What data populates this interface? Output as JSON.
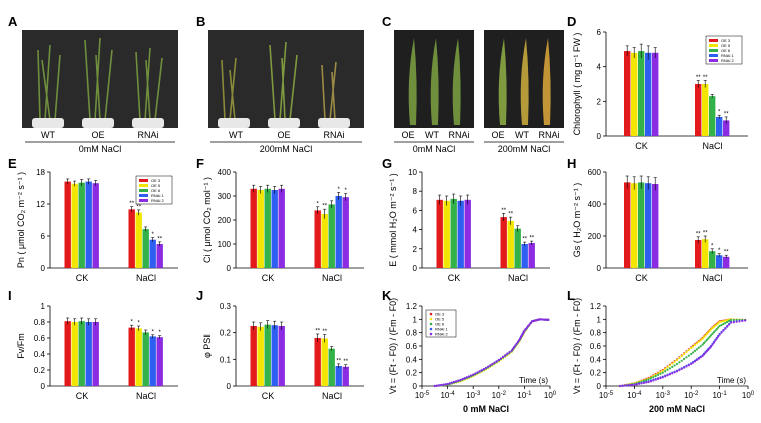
{
  "panel_labels": [
    "A",
    "B",
    "C",
    "D",
    "E",
    "F",
    "G",
    "H",
    "I",
    "J",
    "K",
    "L"
  ],
  "colors": {
    "genotypes": [
      "#e31a1c",
      "#f2e600",
      "#33b24a",
      "#2f5ff0",
      "#8b2be2"
    ],
    "photo_bg": "#2a2a2a",
    "leaf_green": "#6f8f3d",
    "leaf_yellow": "#b59a3a"
  },
  "photos": {
    "A": {
      "genotypes": [
        "WT",
        "OE",
        "RNAi"
      ],
      "treatment": "0mM NaCl"
    },
    "B": {
      "genotypes": [
        "WT",
        "OE",
        "RNAi"
      ],
      "treatment": "200mM NaCl"
    },
    "C": [
      {
        "genotypes": [
          "OE",
          "WT",
          "RNAi"
        ],
        "treatment": "0mM NaCl"
      },
      {
        "genotypes": [
          "OE",
          "WT",
          "RNAi"
        ],
        "treatment": "200mM NaCl"
      }
    ]
  },
  "chart_data": [
    {
      "panel": "D",
      "type": "bar",
      "ylabel": "Chlorophyll ( mg g⁻¹ FW )",
      "categories": [
        "CK",
        "NaCl"
      ],
      "ylim": [
        0,
        6
      ],
      "yticks": [
        0,
        2,
        4,
        6
      ],
      "legend": [
        "OE 3",
        "OE 5",
        "OE 6",
        "RNAi 1",
        "RNAi 2"
      ],
      "series_values": [
        [
          4.9,
          3.0
        ],
        [
          4.8,
          3.0
        ],
        [
          4.9,
          2.3
        ],
        [
          4.8,
          1.1
        ],
        [
          4.8,
          0.9
        ]
      ],
      "errors": [
        [
          0.3,
          0.2
        ],
        [
          0.3,
          0.2
        ],
        [
          0.4,
          0.1
        ],
        [
          0.4,
          0.1
        ],
        [
          0.3,
          0.2
        ]
      ],
      "stars": [
        [
          "",
          "**"
        ],
        [
          "",
          "**"
        ],
        [
          "",
          ""
        ],
        [
          "",
          "*"
        ],
        [
          "",
          "**"
        ]
      ]
    },
    {
      "panel": "E",
      "type": "bar",
      "ylabel": "Pn ( μmol CO₂ m⁻² s⁻¹ )",
      "categories": [
        "CK",
        "NaCl"
      ],
      "ylim": [
        0,
        18
      ],
      "yticks": [
        0,
        6,
        12,
        18
      ],
      "legend": [
        "OE 3",
        "OE 5",
        "OE 6",
        "RNAi 1",
        "RNAi 2"
      ],
      "series_values": [
        [
          16.2,
          11.0
        ],
        [
          15.8,
          10.4
        ],
        [
          16.0,
          7.3
        ],
        [
          16.2,
          5.3
        ],
        [
          15.9,
          4.5
        ]
      ],
      "errors": [
        [
          0.5,
          0.5
        ],
        [
          0.5,
          0.5
        ],
        [
          0.6,
          0.4
        ],
        [
          0.5,
          0.4
        ],
        [
          0.5,
          0.4
        ]
      ],
      "stars": [
        [
          "",
          "**"
        ],
        [
          "",
          "**"
        ],
        [
          "",
          ""
        ],
        [
          "",
          "*"
        ],
        [
          "",
          "**"
        ]
      ]
    },
    {
      "panel": "F",
      "type": "bar",
      "ylabel": "Ci ( μmol CO₂ mol⁻¹ )",
      "categories": [
        "CK",
        "NaCl"
      ],
      "ylim": [
        0,
        400
      ],
      "yticks": [
        0,
        100,
        200,
        300,
        400
      ],
      "legend": [],
      "series_values": [
        [
          330,
          240
        ],
        [
          325,
          225
        ],
        [
          330,
          265
        ],
        [
          325,
          300
        ],
        [
          330,
          295
        ]
      ],
      "errors": [
        [
          15,
          15
        ],
        [
          15,
          20
        ],
        [
          15,
          15
        ],
        [
          15,
          15
        ],
        [
          15,
          15
        ]
      ],
      "stars": [
        [
          "",
          "*"
        ],
        [
          "",
          "**"
        ],
        [
          "",
          ""
        ],
        [
          "",
          "*"
        ],
        [
          "",
          "*"
        ]
      ]
    },
    {
      "panel": "G",
      "type": "bar",
      "ylabel": "E ( mmol H₂O m⁻² s⁻¹ )",
      "categories": [
        "CK",
        "NaCl"
      ],
      "ylim": [
        0,
        10
      ],
      "yticks": [
        0,
        2,
        4,
        6,
        8,
        10
      ],
      "legend": [],
      "series_values": [
        [
          7.1,
          5.3
        ],
        [
          7.0,
          4.9
        ],
        [
          7.2,
          4.1
        ],
        [
          7.0,
          2.5
        ],
        [
          7.1,
          2.6
        ]
      ],
      "errors": [
        [
          0.5,
          0.4
        ],
        [
          0.5,
          0.4
        ],
        [
          0.5,
          0.3
        ],
        [
          0.5,
          0.2
        ],
        [
          0.5,
          0.2
        ]
      ],
      "stars": [
        [
          "",
          "**"
        ],
        [
          "",
          "**"
        ],
        [
          "",
          ""
        ],
        [
          "",
          "**"
        ],
        [
          "",
          "**"
        ]
      ]
    },
    {
      "panel": "H",
      "type": "bar",
      "ylabel": "Gs ( H₂O m⁻² s⁻¹ )",
      "categories": [
        "CK",
        "NaCl"
      ],
      "ylim": [
        0,
        600
      ],
      "yticks": [
        0,
        200,
        400,
        600
      ],
      "legend": [],
      "series_values": [
        [
          535,
          175
        ],
        [
          530,
          180
        ],
        [
          535,
          105
        ],
        [
          530,
          80
        ],
        [
          525,
          70
        ]
      ],
      "errors": [
        [
          40,
          20
        ],
        [
          40,
          20
        ],
        [
          40,
          15
        ],
        [
          40,
          10
        ],
        [
          40,
          10
        ]
      ],
      "stars": [
        [
          "",
          "**"
        ],
        [
          "",
          "**"
        ],
        [
          "",
          "*"
        ],
        [
          "",
          "*"
        ],
        [
          "",
          "**"
        ]
      ]
    },
    {
      "panel": "I",
      "type": "bar",
      "ylabel": "Fv/Fm",
      "categories": [
        "CK",
        "NaCl"
      ],
      "ylim": [
        0,
        1.0
      ],
      "yticks": [
        0,
        0.2,
        0.4,
        0.6,
        0.8,
        1.0
      ],
      "legend": [],
      "series_values": [
        [
          0.81,
          0.73
        ],
        [
          0.8,
          0.72
        ],
        [
          0.81,
          0.67
        ],
        [
          0.8,
          0.62
        ],
        [
          0.8,
          0.61
        ]
      ],
      "errors": [
        [
          0.04,
          0.03
        ],
        [
          0.04,
          0.03
        ],
        [
          0.04,
          0.03
        ],
        [
          0.04,
          0.02
        ],
        [
          0.04,
          0.02
        ]
      ],
      "stars": [
        [
          "",
          "*"
        ],
        [
          "",
          "*"
        ],
        [
          "",
          ""
        ],
        [
          "",
          "*"
        ],
        [
          "",
          "*"
        ]
      ]
    },
    {
      "panel": "J",
      "type": "bar",
      "ylabel": "φ PS‖",
      "categories": [
        "CK",
        "NaCl"
      ],
      "ylim": [
        0,
        0.3
      ],
      "yticks": [
        0,
        0.1,
        0.2,
        0.3
      ],
      "legend": [],
      "series_values": [
        [
          0.225,
          0.18
        ],
        [
          0.222,
          0.178
        ],
        [
          0.23,
          0.14
        ],
        [
          0.228,
          0.075
        ],
        [
          0.225,
          0.072
        ]
      ],
      "errors": [
        [
          0.015,
          0.015
        ],
        [
          0.015,
          0.015
        ],
        [
          0.015,
          0.008
        ],
        [
          0.015,
          0.008
        ],
        [
          0.015,
          0.008
        ]
      ],
      "stars": [
        [
          "",
          "**"
        ],
        [
          "",
          "**"
        ],
        [
          "",
          ""
        ],
        [
          "",
          "**"
        ],
        [
          "",
          "**"
        ]
      ]
    },
    {
      "panel": "K",
      "type": "scatter",
      "ylabel": "Vt = (Ft - F0) / (Fm - F0)",
      "xlabel": "Time (s)",
      "caption": "0 mM NaCl",
      "xscale": "log",
      "xlim": [
        1e-05,
        1
      ],
      "ylim": [
        0,
        1.2
      ],
      "xtick_exponents": [
        -5,
        -4,
        -3,
        -2,
        -1,
        0
      ],
      "yticks": [
        0,
        0.2,
        0.4,
        0.6,
        0.8,
        1.0,
        1.2
      ],
      "legend": [
        "OE 3",
        "OE 5",
        "OE 6",
        "RNAi 1",
        "RNAi 2"
      ],
      "curves": [
        {
          "points": [
            [
              -4.5,
              0.0
            ],
            [
              -4,
              0.02
            ],
            [
              -3.5,
              0.08
            ],
            [
              -3,
              0.16
            ],
            [
              -2.5,
              0.26
            ],
            [
              -2,
              0.38
            ],
            [
              -1.5,
              0.52
            ],
            [
              -1.2,
              0.68
            ],
            [
              -1,
              0.82
            ],
            [
              -0.7,
              0.97
            ],
            [
              -0.4,
              1.0
            ],
            [
              0,
              0.99
            ]
          ]
        },
        {
          "points": [
            [
              -4.5,
              0.0
            ],
            [
              -4,
              0.02
            ],
            [
              -3.5,
              0.07
            ],
            [
              -3,
              0.15
            ],
            [
              -2.5,
              0.25
            ],
            [
              -2,
              0.37
            ],
            [
              -1.5,
              0.51
            ],
            [
              -1.2,
              0.67
            ],
            [
              -1,
              0.81
            ],
            [
              -0.7,
              0.97
            ],
            [
              -0.4,
              1.0
            ],
            [
              0,
              0.99
            ]
          ]
        },
        {
          "points": [
            [
              -4.5,
              0.0
            ],
            [
              -4,
              0.02
            ],
            [
              -3.5,
              0.08
            ],
            [
              -3,
              0.16
            ],
            [
              -2.5,
              0.26
            ],
            [
              -2,
              0.38
            ],
            [
              -1.5,
              0.52
            ],
            [
              -1.2,
              0.68
            ],
            [
              -1,
              0.82
            ],
            [
              -0.7,
              0.97
            ],
            [
              -0.4,
              1.0
            ],
            [
              0,
              0.99
            ]
          ]
        },
        {
          "points": [
            [
              -4.5,
              0.0
            ],
            [
              -4,
              0.03
            ],
            [
              -3.5,
              0.09
            ],
            [
              -3,
              0.17
            ],
            [
              -2.5,
              0.27
            ],
            [
              -2,
              0.39
            ],
            [
              -1.5,
              0.53
            ],
            [
              -1.2,
              0.69
            ],
            [
              -1,
              0.83
            ],
            [
              -0.7,
              0.97
            ],
            [
              -0.4,
              1.0
            ],
            [
              0,
              0.99
            ]
          ]
        },
        {
          "points": [
            [
              -4.5,
              0.0
            ],
            [
              -4,
              0.03
            ],
            [
              -3.5,
              0.09
            ],
            [
              -3,
              0.17
            ],
            [
              -2.5,
              0.27
            ],
            [
              -2,
              0.39
            ],
            [
              -1.5,
              0.53
            ],
            [
              -1.2,
              0.69
            ],
            [
              -1,
              0.83
            ],
            [
              -0.7,
              0.97
            ],
            [
              -0.4,
              1.0
            ],
            [
              0,
              0.99
            ]
          ]
        }
      ]
    },
    {
      "panel": "L",
      "type": "scatter",
      "ylabel": "Vt = (Ft - F0) / (Fm - F0)",
      "xlabel": "Time (s)",
      "caption": "200 mM NaCl",
      "xscale": "log",
      "xlim": [
        1e-05,
        1
      ],
      "ylim": [
        0,
        1.2
      ],
      "xtick_exponents": [
        -5,
        -4,
        -3,
        -2,
        -1,
        0
      ],
      "yticks": [
        0,
        0.2,
        0.4,
        0.6,
        0.8,
        1.0,
        1.2
      ],
      "legend": [],
      "curves": [
        {
          "points": [
            [
              -4.5,
              0.0
            ],
            [
              -4,
              0.04
            ],
            [
              -3.5,
              0.12
            ],
            [
              -3,
              0.24
            ],
            [
              -2.5,
              0.4
            ],
            [
              -2,
              0.58
            ],
            [
              -1.6,
              0.72
            ],
            [
              -1.3,
              0.86
            ],
            [
              -1,
              0.97
            ],
            [
              -0.6,
              1.0
            ],
            [
              0,
              0.99
            ]
          ]
        },
        {
          "points": [
            [
              -4.5,
              0.0
            ],
            [
              -4,
              0.04
            ],
            [
              -3.5,
              0.11
            ],
            [
              -3,
              0.23
            ],
            [
              -2.5,
              0.39
            ],
            [
              -2,
              0.57
            ],
            [
              -1.6,
              0.71
            ],
            [
              -1.3,
              0.85
            ],
            [
              -1,
              0.96
            ],
            [
              -0.6,
              1.0
            ],
            [
              0,
              0.99
            ]
          ]
        },
        {
          "points": [
            [
              -4.5,
              0.0
            ],
            [
              -4,
              0.03
            ],
            [
              -3.5,
              0.1
            ],
            [
              -3,
              0.2
            ],
            [
              -2.5,
              0.33
            ],
            [
              -2,
              0.48
            ],
            [
              -1.6,
              0.62
            ],
            [
              -1.3,
              0.76
            ],
            [
              -1,
              0.9
            ],
            [
              -0.6,
              0.99
            ],
            [
              0,
              0.99
            ]
          ]
        },
        {
          "points": [
            [
              -4.5,
              0.0
            ],
            [
              -4,
              0.02
            ],
            [
              -3.5,
              0.07
            ],
            [
              -3,
              0.14
            ],
            [
              -2.5,
              0.23
            ],
            [
              -2,
              0.34
            ],
            [
              -1.6,
              0.46
            ],
            [
              -1.3,
              0.6
            ],
            [
              -1,
              0.78
            ],
            [
              -0.6,
              0.96
            ],
            [
              0,
              0.99
            ]
          ]
        },
        {
          "points": [
            [
              -4.5,
              0.0
            ],
            [
              -4,
              0.02
            ],
            [
              -3.5,
              0.06
            ],
            [
              -3,
              0.13
            ],
            [
              -2.5,
              0.22
            ],
            [
              -2,
              0.33
            ],
            [
              -1.6,
              0.45
            ],
            [
              -1.3,
              0.59
            ],
            [
              -1,
              0.77
            ],
            [
              -0.6,
              0.95
            ],
            [
              0,
              0.99
            ]
          ]
        }
      ]
    }
  ]
}
